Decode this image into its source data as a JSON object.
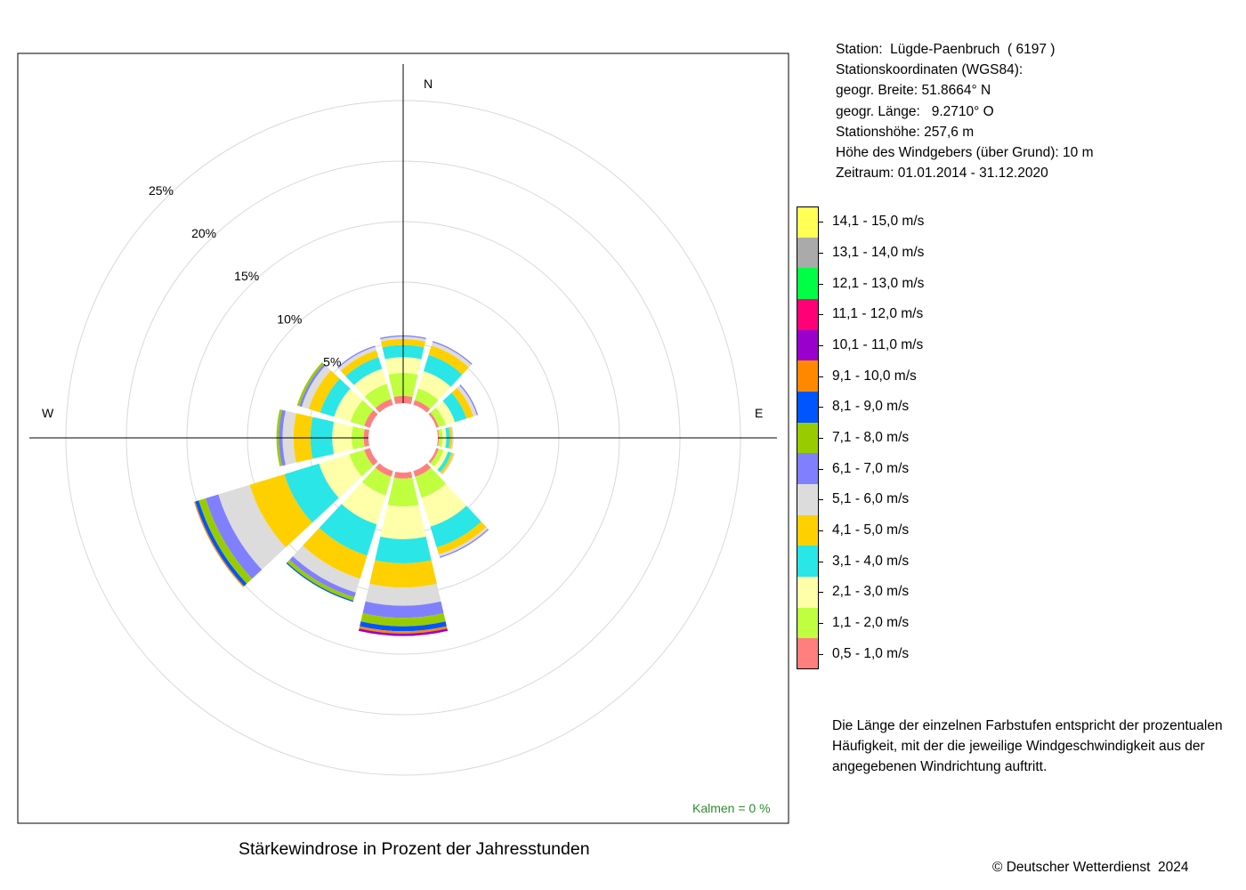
{
  "station": {
    "line1": "Station:  Lügde-Paenbruch  ( 6197 )",
    "line2": "Stationskoordinaten (WGS84):",
    "line3": "geogr. Breite: 51.8664° N",
    "line4": "geogr. Länge:   9.2710° O",
    "line5": "Stationshöhe: 257,6 m",
    "line6": "Höhe des Windgebers (über Grund): 10 m",
    "line7": "Zeitraum: 01.01.2014 - 31.12.2020"
  },
  "calm_text": "Kalmen  =  0 %",
  "caption": "Stärkewindrose in Prozent der Jahresstunden",
  "description": {
    "line1": "Die Länge der einzelnen Farbstufen entspricht der prozentualen",
    "line2": "Häufigkeit, mit der die jeweilige Windgeschwindigkeit aus der",
    "line3": "angegebenen Windrichtung auftritt."
  },
  "copyright": "© Deutscher Wetterdienst  2024",
  "chart_data": {
    "type": "wind-rose",
    "unit": "%",
    "ring_labels": [
      "5%",
      "10%",
      "15%",
      "20%",
      "25%"
    ],
    "rings": [
      5,
      10,
      15,
      20,
      25
    ],
    "axis_labels": {
      "north": "N",
      "east": "E",
      "west": "W"
    },
    "speed_classes": [
      {
        "label": "0,5 - 1,0 m/s",
        "color": "#ff7f7f"
      },
      {
        "label": "1,1 - 2,0 m/s",
        "color": "#bfff3f"
      },
      {
        "label": "2,1 - 3,0 m/s",
        "color": "#ffffaa"
      },
      {
        "label": "3,1 - 4,0 m/s",
        "color": "#2ae6e6"
      },
      {
        "label": "4,1 - 5,0 m/s",
        "color": "#ffd000"
      },
      {
        "label": "5,1 - 6,0 m/s",
        "color": "#dcdcdc"
      },
      {
        "label": "6,1 - 7,0 m/s",
        "color": "#8080ff"
      },
      {
        "label": "7,1 - 8,0 m/s",
        "color": "#99cc00"
      },
      {
        "label": "8,1 - 9,0 m/s",
        "color": "#0055ff"
      },
      {
        "label": "9,1 - 10,0 m/s",
        "color": "#ff8800"
      },
      {
        "label": "10,1 - 11,0 m/s",
        "color": "#9900cc"
      },
      {
        "label": "11,1 - 12,0 m/s",
        "color": "#ff0077"
      },
      {
        "label": "12,1 - 13,0 m/s",
        "color": "#00ff44"
      },
      {
        "label": "13,1 - 14,0 m/s",
        "color": "#aaaaaa"
      },
      {
        "label": "14,1 - 15,0 m/s",
        "color": "#ffff55"
      }
    ],
    "directions": [
      {
        "dir": 0,
        "values": [
          0.6,
          1.9,
          1.3,
          1.0,
          0.5,
          0.2,
          0.1,
          0.0,
          0.0,
          0.0,
          0.0,
          0.0,
          0.0,
          0.0,
          0.0
        ]
      },
      {
        "dir": 30,
        "values": [
          0.4,
          1.0,
          1.5,
          1.4,
          0.8,
          0.3,
          0.1,
          0.0,
          0.0,
          0.0,
          0.0,
          0.0,
          0.0,
          0.0,
          0.0
        ]
      },
      {
        "dir": 60,
        "values": [
          0.2,
          0.6,
          0.8,
          1.0,
          0.6,
          0.3,
          0.1,
          0.0,
          0.0,
          0.0,
          0.0,
          0.0,
          0.0,
          0.0,
          0.0
        ]
      },
      {
        "dir": 90,
        "values": [
          0.1,
          0.3,
          0.3,
          0.3,
          0.2,
          0.1,
          0.0,
          0.0,
          0.0,
          0.0,
          0.0,
          0.0,
          0.0,
          0.0,
          0.0
        ]
      },
      {
        "dir": 120,
        "values": [
          0.2,
          0.4,
          0.4,
          0.3,
          0.2,
          0.1,
          0.0,
          0.0,
          0.0,
          0.0,
          0.0,
          0.0,
          0.0,
          0.0,
          0.0
        ]
      },
      {
        "dir": 150,
        "values": [
          0.5,
          1.8,
          2.5,
          1.8,
          0.6,
          0.2,
          0.1,
          0.0,
          0.0,
          0.0,
          0.0,
          0.0,
          0.0,
          0.0,
          0.0
        ]
      },
      {
        "dir": 180,
        "values": [
          0.5,
          2.3,
          2.7,
          2.0,
          2.0,
          1.5,
          1.0,
          0.7,
          0.4,
          0.2,
          0.2,
          0.0,
          0.0,
          0.0,
          0.0
        ]
      },
      {
        "dir": 210,
        "values": [
          0.5,
          1.6,
          2.5,
          2.7,
          2.0,
          1.2,
          0.4,
          0.3,
          0.1,
          0.0,
          0.0,
          0.0,
          0.0,
          0.0,
          0.0
        ]
      },
      {
        "dir": 240,
        "values": [
          0.5,
          1.3,
          2.6,
          3.0,
          3.0,
          2.7,
          1.1,
          0.6,
          0.3,
          0.1,
          0.0,
          0.0,
          0.0,
          0.0,
          0.0
        ]
      },
      {
        "dir": 270,
        "values": [
          0.4,
          1.0,
          1.6,
          1.8,
          1.4,
          0.9,
          0.3,
          0.2,
          0.0,
          0.0,
          0.0,
          0.0,
          0.0,
          0.0,
          0.0
        ]
      },
      {
        "dir": 300,
        "values": [
          0.5,
          1.2,
          1.4,
          1.2,
          1.0,
          0.6,
          0.2,
          0.2,
          0.0,
          0.0,
          0.0,
          0.0,
          0.0,
          0.0,
          0.0
        ]
      },
      {
        "dir": 330,
        "values": [
          0.5,
          1.3,
          1.3,
          1.0,
          0.6,
          0.3,
          0.1,
          0.0,
          0.0,
          0.0,
          0.0,
          0.0,
          0.0,
          0.0,
          0.0
        ]
      }
    ]
  }
}
